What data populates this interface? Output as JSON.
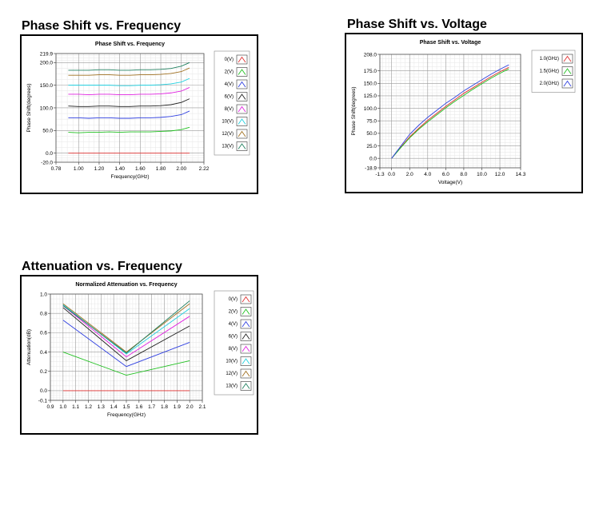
{
  "panels": [
    {
      "heading": "Phase Shift vs. Frequency",
      "chart_title": "Phase Shift vs. Frequency",
      "xlabel": "Frequency(GHz)",
      "ylabel": "Phase Shift(degrees)"
    },
    {
      "heading": "Phase Shift vs. Voltage",
      "chart_title": "Phase Shift vs. Voltage",
      "xlabel": "Voltage(V)",
      "ylabel": "Phase Shift(degrees)"
    },
    {
      "heading": "Attenuation vs. Frequency",
      "chart_title": "Normalized Attenuation vs. Frequency",
      "xlabel": "Frequency(GHz)",
      "ylabel": "Attenuation(dB)"
    }
  ],
  "chart_data": [
    {
      "type": "line",
      "title": "Phase Shift vs. Frequency",
      "xlabel": "Frequency(GHz)",
      "ylabel": "Phase Shift(degrees)",
      "xlim": [
        0.78,
        2.22
      ],
      "ylim": [
        -20.0,
        219.9
      ],
      "x_ticks": [
        "0.78",
        "1.00",
        "1.20",
        "1.40",
        "1.60",
        "1.80",
        "2.00",
        "2.22"
      ],
      "x_tick_values": [
        0.78,
        1.0,
        1.2,
        1.4,
        1.6,
        1.8,
        2.0,
        2.22
      ],
      "y_ticks": [
        "219.9",
        "200.0",
        "150.0",
        "100.0",
        "50.0",
        "0.0",
        "-20.0"
      ],
      "y_tick_values": [
        219.9,
        200.0,
        150.0,
        100.0,
        50.0,
        0.0,
        -20.0
      ],
      "grid": true,
      "legend_position": "right",
      "x": [
        0.9,
        1.0,
        1.1,
        1.2,
        1.3,
        1.4,
        1.5,
        1.6,
        1.7,
        1.8,
        1.9,
        2.0,
        2.08
      ],
      "series": [
        {
          "name": "0(V)",
          "color": "#e03030",
          "values": [
            0,
            0,
            0,
            0,
            0,
            0,
            0,
            0,
            0,
            0,
            0,
            0,
            0
          ]
        },
        {
          "name": "2(V)",
          "color": "#20c020",
          "values": [
            46,
            45,
            46,
            46,
            47,
            46,
            47,
            47,
            47,
            48,
            49,
            52,
            57
          ]
        },
        {
          "name": "4(V)",
          "color": "#3040e0",
          "values": [
            78,
            78,
            77,
            78,
            78,
            77,
            77,
            78,
            78,
            79,
            81,
            85,
            93
          ]
        },
        {
          "name": "6(V)",
          "color": "#202020",
          "values": [
            104,
            103,
            103,
            104,
            104,
            103,
            103,
            104,
            104,
            105,
            107,
            112,
            120
          ]
        },
        {
          "name": "8(V)",
          "color": "#e020e0",
          "values": [
            130,
            130,
            129,
            130,
            130,
            129,
            129,
            130,
            130,
            131,
            133,
            137,
            145
          ]
        },
        {
          "name": "10(V)",
          "color": "#20d0e0",
          "values": [
            150,
            150,
            150,
            150,
            150,
            149,
            149,
            150,
            150,
            151,
            153,
            157,
            165
          ]
        },
        {
          "name": "12(V)",
          "color": "#a07020",
          "values": [
            172,
            172,
            172,
            173,
            173,
            172,
            172,
            173,
            173,
            174,
            176,
            180,
            188
          ]
        },
        {
          "name": "13(V)",
          "color": "#208060",
          "values": [
            183,
            183,
            183,
            184,
            184,
            183,
            183,
            184,
            184,
            185,
            187,
            192,
            200
          ]
        }
      ]
    },
    {
      "type": "line",
      "title": "Phase Shift vs. Voltage",
      "xlabel": "Voltage(V)",
      "ylabel": "Phase Shift(degrees)",
      "xlim": [
        -1.3,
        14.3
      ],
      "ylim": [
        -18.9,
        208.0
      ],
      "x_ticks": [
        "-1.3",
        "0.0",
        "2.0",
        "4.0",
        "6.0",
        "8.0",
        "10.0",
        "12.0",
        "14.3"
      ],
      "x_tick_values": [
        -1.3,
        0.0,
        2.0,
        4.0,
        6.0,
        8.0,
        10.0,
        12.0,
        14.3
      ],
      "y_ticks": [
        "208.0",
        "175.0",
        "150.0",
        "125.0",
        "100.0",
        "75.0",
        "50.0",
        "25.0",
        "0.0",
        "-18.9"
      ],
      "y_tick_values": [
        208.0,
        175.0,
        150.0,
        125.0,
        100.0,
        75.0,
        50.0,
        25.0,
        0.0,
        -18.9
      ],
      "grid": true,
      "legend_position": "right",
      "x": [
        0,
        1,
        2,
        3,
        4,
        5,
        6,
        7,
        8,
        9,
        10,
        11,
        12,
        13
      ],
      "series": [
        {
          "name": "1.0(GHz)",
          "color": "#e03030",
          "values": [
            0,
            22,
            43,
            60,
            76,
            90,
            104,
            117,
            130,
            141,
            152,
            163,
            173,
            182
          ]
        },
        {
          "name": "1.5(GHz)",
          "color": "#20c020",
          "values": [
            0,
            21,
            41,
            58,
            73,
            87,
            101,
            114,
            126,
            138,
            149,
            160,
            170,
            179
          ]
        },
        {
          "name": "2.0(GHz)",
          "color": "#3040e0",
          "values": [
            0,
            24,
            48,
            66,
            82,
            96,
            110,
            122,
            135,
            146,
            157,
            168,
            178,
            187
          ]
        }
      ]
    },
    {
      "type": "line",
      "title": "Normalized Attenuation vs. Frequency",
      "xlabel": "Frequency(GHz)",
      "ylabel": "Attenuation(dB)",
      "xlim": [
        0.9,
        2.1
      ],
      "ylim": [
        -0.1,
        1.0
      ],
      "x_ticks": [
        "0.9",
        "1.0",
        "1.1",
        "1.2",
        "1.3",
        "1.4",
        "1.5",
        "1.6",
        "1.7",
        "1.8",
        "1.9",
        "2.0",
        "2.1"
      ],
      "x_tick_values": [
        0.9,
        1.0,
        1.1,
        1.2,
        1.3,
        1.4,
        1.5,
        1.6,
        1.7,
        1.8,
        1.9,
        2.0,
        2.1
      ],
      "y_ticks": [
        "1.0",
        "0.8",
        "0.6",
        "0.4",
        "0.2",
        "0.0",
        "-0.1"
      ],
      "y_tick_values": [
        1.0,
        0.8,
        0.6,
        0.4,
        0.2,
        0.0,
        -0.1
      ],
      "grid": true,
      "legend_position": "right",
      "x": [
        1.0,
        1.5,
        2.0
      ],
      "series": [
        {
          "name": "0(V)",
          "color": "#e03030",
          "values": [
            0.0,
            0.0,
            0.0
          ]
        },
        {
          "name": "2(V)",
          "color": "#20c020",
          "values": [
            0.4,
            0.16,
            0.31
          ]
        },
        {
          "name": "4(V)",
          "color": "#3040e0",
          "values": [
            0.73,
            0.25,
            0.5
          ]
        },
        {
          "name": "6(V)",
          "color": "#202020",
          "values": [
            0.86,
            0.31,
            0.67
          ]
        },
        {
          "name": "8(V)",
          "color": "#e020e0",
          "values": [
            0.88,
            0.35,
            0.77
          ]
        },
        {
          "name": "10(V)",
          "color": "#20d0e0",
          "values": [
            0.89,
            0.38,
            0.85
          ]
        },
        {
          "name": "12(V)",
          "color": "#a07020",
          "values": [
            0.9,
            0.4,
            0.9
          ]
        },
        {
          "name": "13(V)",
          "color": "#208060",
          "values": [
            0.88,
            0.39,
            0.93
          ]
        }
      ]
    }
  ]
}
